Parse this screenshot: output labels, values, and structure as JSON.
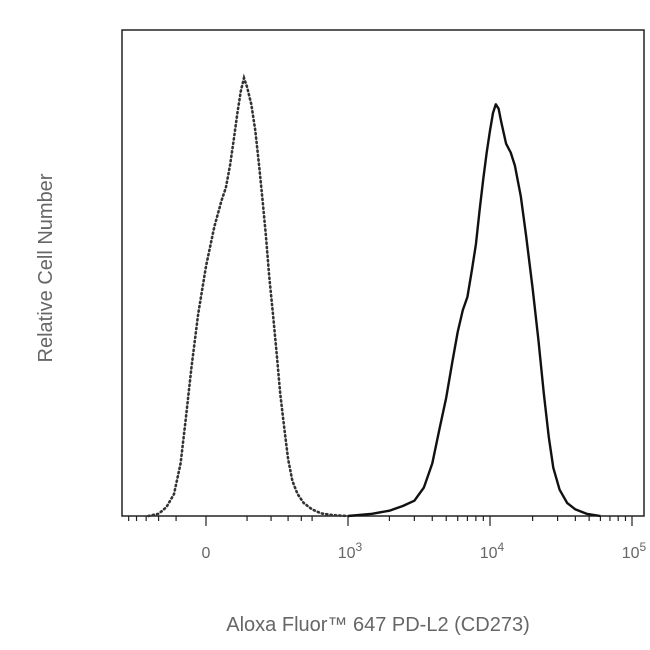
{
  "chart_data": {
    "type": "line",
    "title": "",
    "xlabel": "Aloxa Fluor™ 647 PD-L2 (CD273)",
    "ylabel": "Relative Cell Number",
    "x_scale": "biexponential",
    "x_ticks": [
      {
        "value": 0,
        "base": "0",
        "exp": ""
      },
      {
        "value": 1000,
        "base": "10",
        "exp": "3"
      },
      {
        "value": 10000,
        "base": "10",
        "exp": "4"
      },
      {
        "value": 100000,
        "base": "10",
        "exp": "5"
      }
    ],
    "ylim": [
      0,
      100
    ],
    "grid": false,
    "legend": "none",
    "series": [
      {
        "style": "dotted",
        "color": "#333333",
        "points": [
          [
            -280,
            0
          ],
          [
            -200,
            0.5
          ],
          [
            -150,
            2
          ],
          [
            -110,
            5
          ],
          [
            -80,
            12
          ],
          [
            -60,
            22
          ],
          [
            -40,
            34
          ],
          [
            -20,
            46
          ],
          [
            0,
            57
          ],
          [
            15,
            66
          ],
          [
            30,
            72
          ],
          [
            40,
            75
          ],
          [
            50,
            80
          ],
          [
            60,
            86
          ],
          [
            70,
            92
          ],
          [
            80,
            97
          ],
          [
            90,
            100
          ],
          [
            100,
            98
          ],
          [
            115,
            94
          ],
          [
            130,
            88
          ],
          [
            145,
            80
          ],
          [
            160,
            72
          ],
          [
            175,
            64
          ],
          [
            190,
            55
          ],
          [
            210,
            46
          ],
          [
            230,
            37
          ],
          [
            250,
            28
          ],
          [
            275,
            20
          ],
          [
            300,
            13
          ],
          [
            330,
            8
          ],
          [
            370,
            5
          ],
          [
            420,
            3
          ],
          [
            500,
            1.5
          ],
          [
            600,
            0.6
          ],
          [
            750,
            0.2
          ],
          [
            1000,
            0
          ]
        ]
      },
      {
        "style": "solid",
        "color": "#111111",
        "points": [
          [
            1000,
            0
          ],
          [
            1500,
            0.5
          ],
          [
            2000,
            1.2
          ],
          [
            2500,
            2.3
          ],
          [
            3000,
            3.5
          ],
          [
            3500,
            6.5
          ],
          [
            4000,
            12
          ],
          [
            4500,
            20
          ],
          [
            5000,
            27
          ],
          [
            5500,
            35
          ],
          [
            6000,
            42
          ],
          [
            6500,
            47
          ],
          [
            7000,
            50
          ],
          [
            7500,
            56
          ],
          [
            8000,
            62
          ],
          [
            8500,
            70
          ],
          [
            9000,
            77
          ],
          [
            9500,
            83
          ],
          [
            10000,
            88
          ],
          [
            10500,
            92
          ],
          [
            11000,
            94
          ],
          [
            11500,
            93
          ],
          [
            12000,
            90
          ],
          [
            13000,
            85
          ],
          [
            14000,
            83
          ],
          [
            15000,
            80
          ],
          [
            16500,
            73
          ],
          [
            18000,
            64
          ],
          [
            20000,
            52
          ],
          [
            22000,
            40
          ],
          [
            24000,
            28
          ],
          [
            26000,
            18
          ],
          [
            28000,
            11
          ],
          [
            31000,
            6
          ],
          [
            35000,
            3
          ],
          [
            40000,
            1.5
          ],
          [
            48000,
            0.5
          ],
          [
            60000,
            0
          ]
        ]
      }
    ]
  }
}
